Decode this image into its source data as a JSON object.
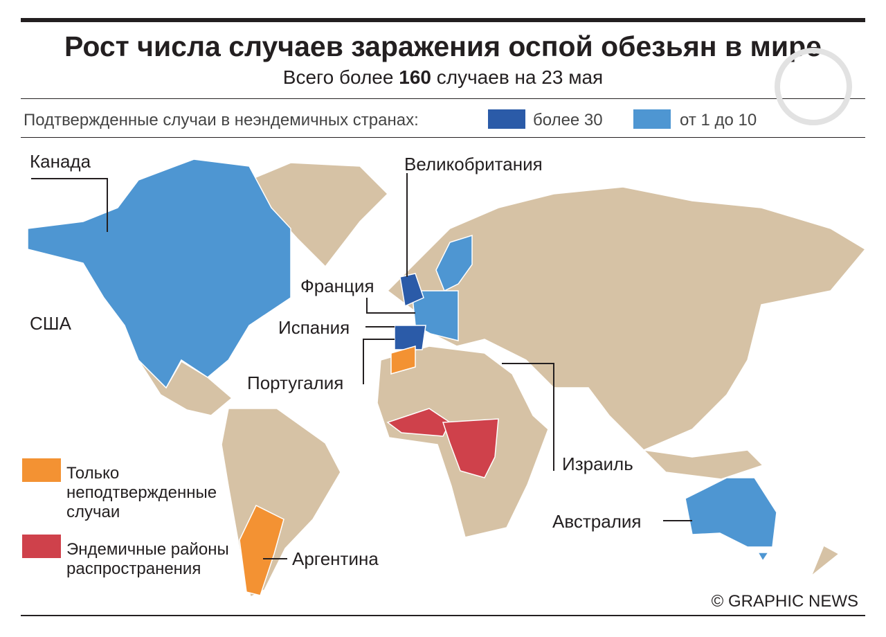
{
  "header": {
    "title": "Рост числа случаев заражения оспой обезьян в мире",
    "subtitle": [
      "Всего более",
      "160",
      "случаев на 23 мая"
    ]
  },
  "legend": {
    "label": "Подтвержденные случаи в неэндемичных странах:",
    "items": [
      {
        "label": "более 30",
        "color": "#2b5ba8"
      },
      {
        "label": "от 1 до 10",
        "color": "#4e96d2"
      }
    ]
  },
  "side_legend": [
    {
      "label": "Только неподтвержденные случаи",
      "color": "#f39233"
    },
    {
      "label": "Эндемичные районы распространения",
      "color": "#cf414b"
    }
  ],
  "countries": [
    "Канада",
    "США",
    "Великобритания",
    "Франция",
    "Испания",
    "Португалия",
    "Израиль",
    "Австралия",
    "Аргентина"
  ],
  "credit": "© GRAPHIC NEWS"
}
